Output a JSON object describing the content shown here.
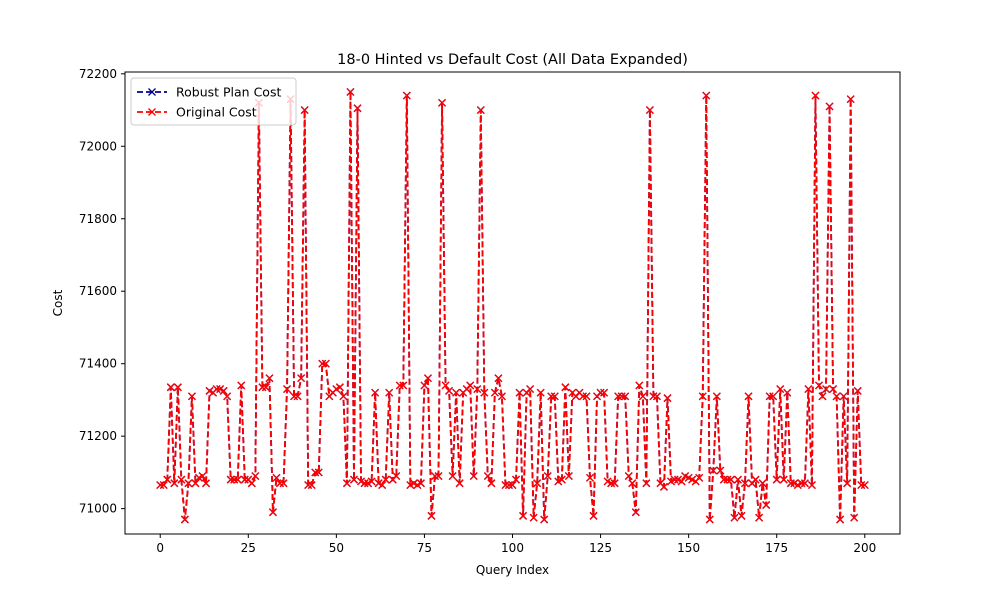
{
  "chart_data": {
    "type": "line",
    "title": "18-0 Hinted vs Default Cost (All Data Expanded)",
    "xlabel": "Query Index",
    "ylabel": "Cost",
    "xlim": [
      -10,
      210
    ],
    "ylim": [
      70930,
      72205
    ],
    "xticks": [
      0,
      25,
      50,
      75,
      100,
      125,
      150,
      175,
      200
    ],
    "yticks": [
      71000,
      71200,
      71400,
      71600,
      71800,
      72000,
      72200
    ],
    "grid": false,
    "legend_position": "top-left",
    "series": [
      {
        "name": "Robust Plan Cost",
        "color": "#00008b",
        "linestyle": "dashed",
        "marker": "x",
        "values": [
          71065,
          71065,
          71080,
          71335,
          71070,
          71335,
          71080,
          70970,
          71070,
          71310,
          71070,
          71085,
          71090,
          71070,
          71325,
          71320,
          71330,
          71330,
          71325,
          71310,
          71080,
          71080,
          71080,
          71340,
          71080,
          71080,
          71070,
          71090,
          72120,
          71335,
          71335,
          71360,
          70990,
          71085,
          71070,
          71070,
          71330,
          72130,
          71310,
          71310,
          71360,
          72100,
          71065,
          71065,
          71100,
          71100,
          71400,
          71400,
          71310,
          71320,
          71330,
          71335,
          71310,
          71070,
          72150,
          71080,
          72105,
          71075,
          71070,
          71070,
          71075,
          71320,
          71070,
          71065,
          71080,
          71320,
          71080,
          71090,
          71340,
          71340,
          72140,
          71065,
          71070,
          71065,
          71070,
          71340,
          71360,
          70980,
          71090,
          71090,
          72120,
          71340,
          71325,
          71090,
          71320,
          71070,
          71320,
          71330,
          71340,
          71090,
          71330,
          72100,
          71320,
          71090,
          71070,
          71320,
          71360,
          71310,
          71065,
          71065,
          71065,
          71080,
          71320,
          70980,
          71320,
          71330,
          70975,
          71070,
          71320,
          70970,
          71090,
          71310,
          71310,
          71075,
          71080,
          71335,
          71090,
          71320,
          71310,
          71320,
          71310,
          71310,
          71085,
          70980,
          71310,
          71320,
          71320,
          71075,
          71070,
          71070,
          71310,
          71310,
          71310,
          71090,
          71070,
          70990,
          71340,
          71310,
          71070,
          72100,
          71310,
          71310,
          71070,
          71060,
          71305,
          71075,
          71080,
          71080,
          71075,
          71090,
          71085,
          71080,
          71075,
          71085,
          71310,
          72140,
          70970,
          71105,
          71310,
          71105,
          71080,
          71080,
          71080,
          70975,
          71080,
          70980,
          71070,
          71310,
          71070,
          71080,
          70975,
          71070,
          71010,
          71310,
          71310,
          71080,
          71330,
          71080,
          71320,
          71070,
          71070,
          71065,
          71070,
          71070,
          71330,
          71065,
          72140,
          71340,
          71310,
          71330,
          72110,
          71330,
          71310,
          70970,
          71310,
          71070,
          72130,
          70975,
          71325,
          71065,
          71065
        ]
      },
      {
        "name": "Original Cost",
        "color": "#ff0000",
        "linestyle": "dashed",
        "marker": "x",
        "values": [
          71065,
          71065,
          71080,
          71335,
          71070,
          71335,
          71080,
          70970,
          71070,
          71310,
          71070,
          71085,
          71090,
          71070,
          71325,
          71320,
          71330,
          71330,
          71325,
          71310,
          71080,
          71080,
          71080,
          71340,
          71080,
          71080,
          71070,
          71090,
          72120,
          71335,
          71335,
          71360,
          70990,
          71085,
          71070,
          71070,
          71330,
          72130,
          71310,
          71310,
          71360,
          72100,
          71065,
          71065,
          71100,
          71100,
          71400,
          71400,
          71310,
          71320,
          71330,
          71335,
          71310,
          71070,
          72150,
          71080,
          72105,
          71075,
          71070,
          71070,
          71075,
          71320,
          71070,
          71065,
          71080,
          71320,
          71080,
          71090,
          71340,
          71340,
          72140,
          71065,
          71070,
          71065,
          71070,
          71340,
          71360,
          70980,
          71090,
          71090,
          72120,
          71340,
          71325,
          71090,
          71320,
          71070,
          71320,
          71330,
          71340,
          71090,
          71330,
          72100,
          71320,
          71090,
          71070,
          71320,
          71360,
          71310,
          71065,
          71065,
          71065,
          71080,
          71320,
          70980,
          71320,
          71330,
          70975,
          71070,
          71320,
          70970,
          71090,
          71310,
          71310,
          71075,
          71080,
          71335,
          71090,
          71320,
          71310,
          71320,
          71310,
          71310,
          71085,
          70980,
          71310,
          71320,
          71320,
          71075,
          71070,
          71070,
          71310,
          71310,
          71310,
          71090,
          71070,
          70990,
          71340,
          71310,
          71070,
          72100,
          71310,
          71310,
          71070,
          71060,
          71305,
          71075,
          71080,
          71080,
          71075,
          71090,
          71085,
          71080,
          71075,
          71085,
          71310,
          72140,
          70970,
          71105,
          71310,
          71105,
          71080,
          71080,
          71080,
          70975,
          71080,
          70980,
          71070,
          71310,
          71070,
          71080,
          70975,
          71070,
          71010,
          71310,
          71310,
          71080,
          71330,
          71080,
          71320,
          71070,
          71070,
          71065,
          71070,
          71070,
          71330,
          71065,
          72140,
          71340,
          71310,
          71330,
          72110,
          71330,
          71310,
          70970,
          71310,
          71070,
          72130,
          70975,
          71325,
          71065,
          71065
        ]
      }
    ]
  }
}
